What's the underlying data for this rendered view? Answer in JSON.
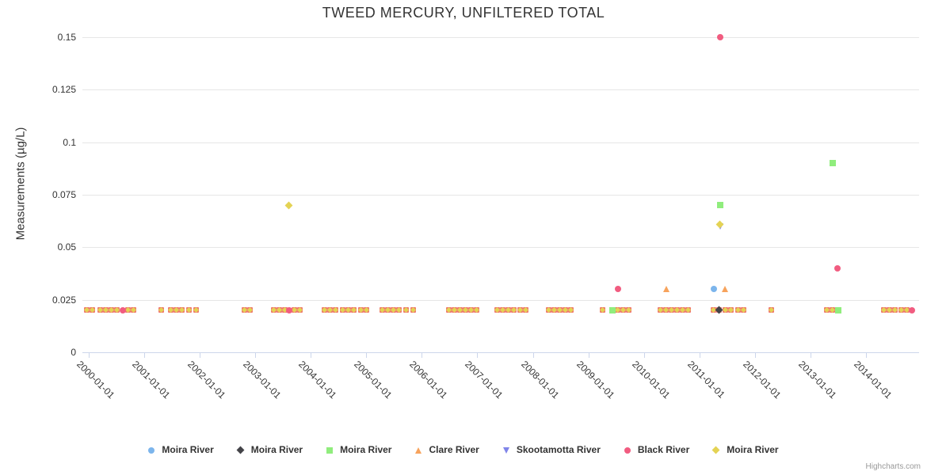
{
  "title": "TWEED MERCURY, UNFILTERED TOTAL",
  "credits": "Highcharts.com",
  "chart_data": {
    "type": "scatter",
    "title": "TWEED MERCURY, UNFILTERED TOTAL",
    "xlabel": "",
    "ylabel": "Measurements (µg/L)",
    "ylim": [
      0,
      0.15
    ],
    "y_ticks": [
      0,
      0.025,
      0.05,
      0.075,
      0.1,
      0.125,
      0.15
    ],
    "y_tick_labels": [
      "0",
      "0.025",
      "0.05",
      "0.075",
      "0.1",
      "0.125",
      "0.15"
    ],
    "x_tick_labels": [
      "2000-01-01",
      "2001-01-01",
      "2002-01-01",
      "2003-01-01",
      "2004-01-01",
      "2005-01-01",
      "2006-01-01",
      "2007-01-01",
      "2008-01-01",
      "2009-01-01",
      "2010-01-01",
      "2011-01-01",
      "2012-01-01",
      "2013-01-01",
      "2014-01-01"
    ],
    "grid": "horizontal-only",
    "legend_position": "bottom",
    "series": [
      {
        "name": "Moira River",
        "shape": "circle",
        "color": "#7cb5ec",
        "points": [
          [
            2011.26,
            0.03
          ]
        ]
      },
      {
        "name": "Moira River",
        "shape": "diamond",
        "color": "#434348",
        "points": [
          [
            2011.36,
            0.02
          ]
        ]
      },
      {
        "name": "Moira River",
        "shape": "square",
        "color": "#90ed7d",
        "points": [
          [
            2011.37,
            0.07
          ],
          [
            2013.4,
            0.09
          ],
          [
            2009.43,
            0.02
          ],
          [
            2013.5,
            0.02
          ]
        ]
      },
      {
        "name": "Clare River",
        "shape": "triangle-up",
        "color": "#f7a35c",
        "points": [
          [
            2010.4,
            0.03
          ],
          [
            2011.46,
            0.03
          ]
        ]
      },
      {
        "name": "Skootamotta River",
        "shape": "triangle-down",
        "color": "#8085e9",
        "points": [
          [
            2011.37,
            0.06
          ]
        ]
      },
      {
        "name": "Black River",
        "shape": "circle",
        "color": "#f15c80",
        "points": [
          [
            2011.37,
            0.15
          ],
          [
            2013.48,
            0.04
          ],
          [
            2009.54,
            0.03
          ],
          [
            2000.61,
            0.02
          ],
          [
            2003.61,
            0.02
          ],
          [
            2014.83,
            0.02
          ]
        ]
      },
      {
        "name": "Moira River",
        "shape": "diamond",
        "color": "#e4d354",
        "points": [
          [
            2003.6,
            0.07
          ],
          [
            2011.37,
            0.061
          ]
        ]
      }
    ],
    "baseline_overlap_points": {
      "note": "dense overlapping multi-station readings rendered as salmon squares with yellow diamond cores",
      "value": 0.02,
      "years": [
        1999.96,
        2000.06,
        2000.21,
        2000.31,
        2000.41,
        2000.51,
        2000.71,
        2000.81,
        2001.3,
        2001.47,
        2001.57,
        2001.67,
        2001.8,
        2001.93,
        2002.8,
        2002.9,
        2003.33,
        2003.43,
        2003.53,
        2003.71,
        2003.81,
        2004.24,
        2004.34,
        2004.44,
        2004.57,
        2004.67,
        2004.77,
        2004.9,
        2005.0,
        2005.29,
        2005.39,
        2005.49,
        2005.59,
        2005.71,
        2005.84,
        2006.48,
        2006.58,
        2006.68,
        2006.78,
        2006.88,
        2006.98,
        2007.36,
        2007.46,
        2007.56,
        2007.66,
        2007.77,
        2007.87,
        2008.29,
        2008.39,
        2008.49,
        2008.59,
        2008.69,
        2009.26,
        2009.53,
        2009.63,
        2009.73,
        2010.29,
        2010.39,
        2010.49,
        2010.59,
        2010.69,
        2010.79,
        2011.26,
        2011.36,
        2011.46,
        2011.56,
        2011.7,
        2011.8,
        2012.29,
        2013.3,
        2013.4,
        2014.32,
        2014.42,
        2014.52,
        2014.63,
        2014.73
      ]
    }
  },
  "colors": {
    "gridline": "#e6e6e6",
    "axis_line": "#ccd6eb",
    "text": "#333333",
    "credits": "#999999",
    "baseline_square": "#ef7a6e",
    "baseline_core": "#e4d354"
  }
}
